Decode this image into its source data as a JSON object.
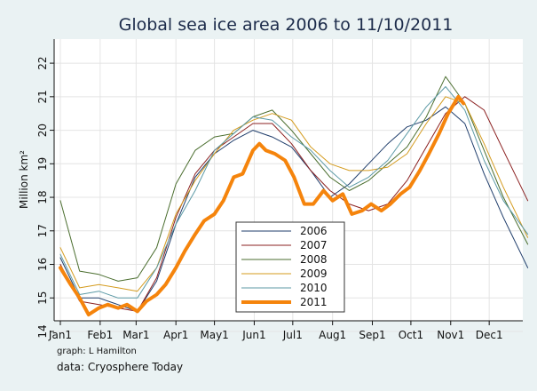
{
  "chart_data": {
    "type": "line",
    "title": "Global sea ice area 2006 to 11/10/2011",
    "ylabel": "Million km²",
    "xlabel": "",
    "ylim": [
      14,
      22.4
    ],
    "xlim": [
      0,
      365
    ],
    "y_ticks": [
      14,
      15,
      16,
      17,
      18,
      19,
      20,
      21,
      22
    ],
    "x_ticks": [
      {
        "label": "Jan1",
        "day": 0
      },
      {
        "label": "Feb1",
        "day": 31
      },
      {
        "label": "Mar1",
        "day": 59
      },
      {
        "label": "Apr1",
        "day": 90
      },
      {
        "label": "May1",
        "day": 120
      },
      {
        "label": "Jun1",
        "day": 151
      },
      {
        "label": "Jul1",
        "day": 181
      },
      {
        "label": "Aug1",
        "day": 212
      },
      {
        "label": "Sep1",
        "day": 243
      },
      {
        "label": "Oct1",
        "day": 273
      },
      {
        "label": "Nov1",
        "day": 304
      },
      {
        "label": "Dec1",
        "day": 334
      }
    ],
    "grid": true,
    "legend_position": "bottom-center",
    "series": [
      {
        "name": "2006",
        "color": "#1f3d6b",
        "width": 1,
        "x": [
          0,
          15,
          30,
          45,
          60,
          75,
          90,
          105,
          120,
          135,
          150,
          165,
          180,
          195,
          210,
          225,
          240,
          255,
          270,
          285,
          300,
          315,
          330,
          345,
          364
        ],
        "y": [
          16.2,
          15.0,
          15.0,
          14.8,
          14.6,
          15.5,
          17.2,
          18.6,
          19.3,
          19.7,
          20.0,
          19.8,
          19.5,
          18.8,
          18.0,
          18.4,
          19.0,
          19.6,
          20.1,
          20.3,
          20.7,
          20.2,
          18.7,
          17.4,
          15.9
        ]
      },
      {
        "name": "2007",
        "color": "#8b2020",
        "width": 1,
        "x": [
          0,
          15,
          30,
          45,
          60,
          75,
          90,
          105,
          120,
          135,
          150,
          165,
          180,
          195,
          210,
          225,
          240,
          255,
          270,
          285,
          300,
          315,
          330,
          345,
          364
        ],
        "y": [
          16.0,
          14.9,
          14.8,
          14.7,
          14.6,
          15.6,
          17.4,
          18.7,
          19.4,
          19.8,
          20.2,
          20.2,
          19.6,
          18.8,
          18.2,
          17.8,
          17.6,
          17.8,
          18.5,
          19.5,
          20.5,
          21.0,
          20.6,
          19.4,
          17.9
        ]
      },
      {
        "name": "2008",
        "color": "#4b6e2f",
        "width": 1,
        "x": [
          0,
          15,
          30,
          45,
          60,
          75,
          90,
          105,
          120,
          135,
          150,
          165,
          180,
          195,
          210,
          225,
          240,
          255,
          270,
          285,
          300,
          315,
          330,
          345,
          364
        ],
        "y": [
          17.9,
          15.8,
          15.7,
          15.5,
          15.6,
          16.5,
          18.4,
          19.4,
          19.8,
          19.9,
          20.4,
          20.6,
          20.0,
          19.3,
          18.6,
          18.2,
          18.5,
          19.0,
          19.5,
          20.4,
          21.6,
          20.8,
          19.4,
          18.0,
          16.6
        ]
      },
      {
        "name": "2009",
        "color": "#d49b1e",
        "width": 1,
        "x": [
          0,
          15,
          30,
          45,
          60,
          75,
          90,
          105,
          120,
          135,
          150,
          165,
          180,
          195,
          210,
          225,
          240,
          255,
          270,
          285,
          300,
          315,
          330,
          345,
          364
        ],
        "y": [
          16.5,
          15.3,
          15.4,
          15.3,
          15.2,
          15.9,
          17.5,
          18.5,
          19.3,
          20.0,
          20.3,
          20.5,
          20.3,
          19.5,
          19.0,
          18.8,
          18.8,
          18.9,
          19.3,
          20.2,
          21.0,
          20.8,
          19.6,
          18.3,
          16.8
        ]
      },
      {
        "name": "2010",
        "color": "#5c9aa6",
        "width": 1,
        "x": [
          0,
          15,
          30,
          45,
          60,
          75,
          90,
          105,
          120,
          135,
          150,
          165,
          180,
          195,
          210,
          225,
          240,
          255,
          270,
          285,
          300,
          315,
          330,
          345,
          364
        ],
        "y": [
          16.3,
          15.1,
          15.2,
          15.0,
          15.0,
          15.9,
          17.2,
          18.2,
          19.4,
          19.9,
          20.4,
          20.3,
          19.8,
          19.4,
          18.8,
          18.3,
          18.6,
          19.1,
          19.9,
          20.7,
          21.3,
          20.6,
          19.1,
          17.9,
          16.9
        ]
      },
      {
        "name": "2011",
        "color": "#f5840c",
        "width": 4,
        "x": [
          0,
          8,
          15,
          22,
          30,
          37,
          45,
          52,
          60,
          67,
          75,
          82,
          90,
          97,
          105,
          112,
          120,
          127,
          135,
          142,
          150,
          155,
          160,
          167,
          175,
          182,
          190,
          197,
          205,
          212,
          220,
          227,
          235,
          242,
          250,
          257,
          265,
          272,
          280,
          287,
          295,
          302,
          310,
          314
        ],
        "y": [
          15.9,
          15.4,
          15.0,
          14.5,
          14.7,
          14.8,
          14.7,
          14.8,
          14.6,
          14.9,
          15.1,
          15.4,
          15.9,
          16.4,
          16.9,
          17.3,
          17.5,
          17.9,
          18.6,
          18.7,
          19.4,
          19.6,
          19.4,
          19.3,
          19.1,
          18.6,
          17.8,
          17.8,
          18.2,
          17.9,
          18.1,
          17.5,
          17.6,
          17.8,
          17.6,
          17.8,
          18.1,
          18.3,
          18.8,
          19.3,
          19.9,
          20.5,
          21.0,
          20.8
        ]
      }
    ]
  },
  "notes": {
    "graph_credit": "graph:  L Hamilton",
    "data_credit": "data:  Cryosphere Today"
  }
}
